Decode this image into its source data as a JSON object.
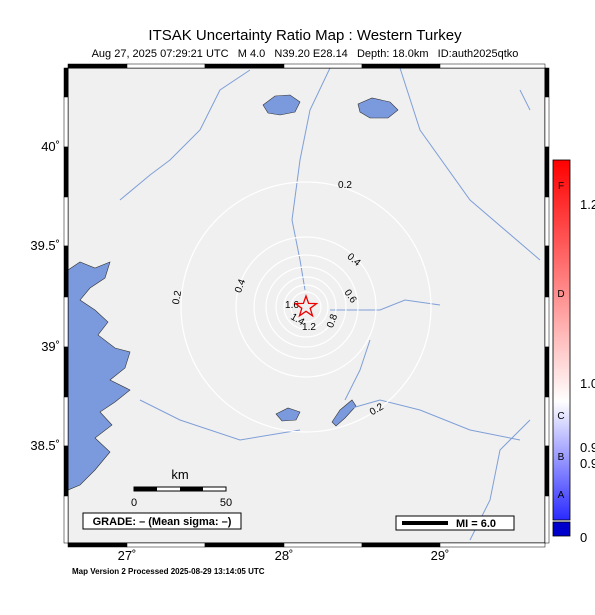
{
  "title": "ITSAK Uncertainty Ratio Map : Western Turkey",
  "subtitle": "Aug 27, 2025 07:29:21 UTC   M 4.0   N39.20 E28.14   Depth: 18.0km   ID:auth2025qtko",
  "map": {
    "lat_labels": [
      "40˚",
      "39.5˚",
      "39˚",
      "38.5˚"
    ],
    "lon_labels": [
      "27˚",
      "28˚",
      "29˚"
    ],
    "contour_labels": [
      "0.2",
      "0.2",
      "0.2",
      "0.4",
      "0.4",
      "0.6",
      "0.8",
      "1.2",
      "1.4",
      "1.6"
    ],
    "scale": {
      "title": "km",
      "labels": [
        "0",
        "50"
      ]
    },
    "grade": "GRADE: – (Mean sigma: –)",
    "mi_legend": "MI = 6.0"
  },
  "colorbar": {
    "letters": [
      "F",
      "D",
      "C",
      "B",
      "A"
    ],
    "labels": [
      "1.2",
      "1.0",
      "0.9",
      "0.9",
      "0"
    ]
  },
  "footer": "Map Version 2 Processed 2025-08-29 13:14:05 UTC"
}
